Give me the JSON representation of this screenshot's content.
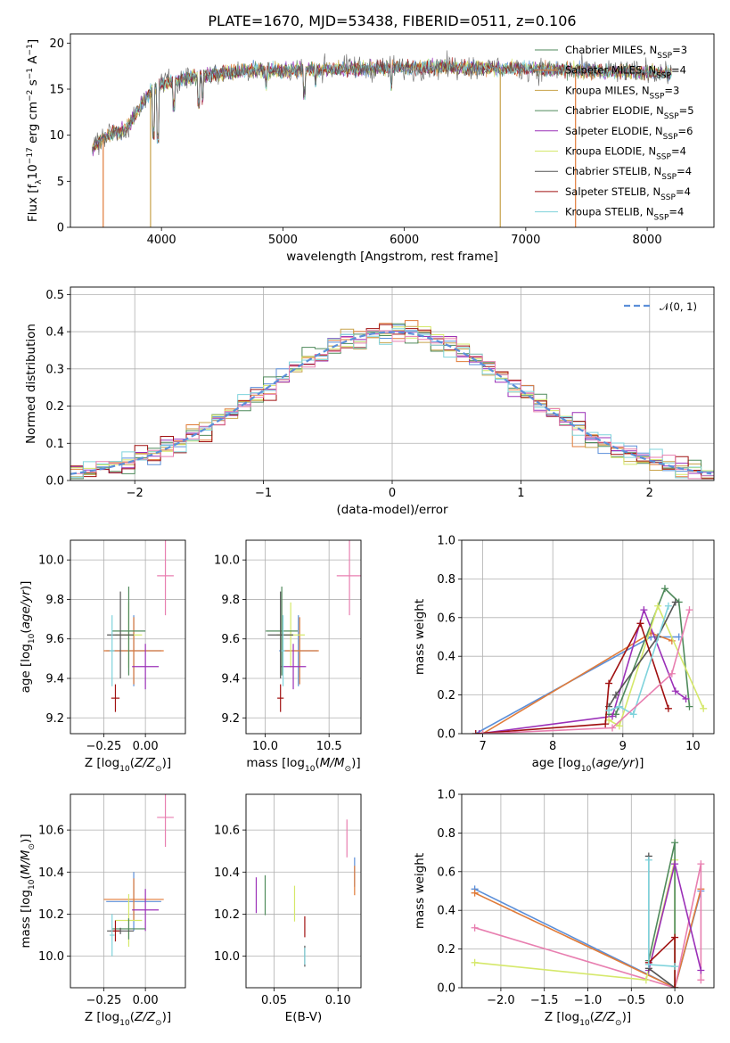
{
  "figure": {
    "title": "PLATE=1670, MJD=53438, FIBERID=0511, z=0.106"
  },
  "series_names": [
    "Chabrier MILES, N_SSP=3",
    "Salpeter MILES, N_SSP=4",
    "Kroupa MILES, N_SSP=3",
    "Chabrier ELODIE, N_SSP=5",
    "Salpeter ELODIE, N_SSP=6",
    "Kroupa ELODIE, N_SSP=4",
    "Chabrier STELIB, N_SSP=4",
    "Salpeter STELIB, N_SSP=4",
    "Kroupa STELIB, N_SSP=4"
  ],
  "colors": [
    "#5b8fd9",
    "#e07b39",
    "#c8a24a",
    "#4f8a5b",
    "#9b30b8",
    "#d5e86a",
    "#555555",
    "#a01010",
    "#7fd3dc",
    "#e87fb0"
  ],
  "chart_data": [
    {
      "id": "spectrum",
      "type": "line",
      "title": "PLATE=1670, MJD=53438, FIBERID=0511, z=0.106",
      "xlabel": "wavelength [Angstrom, rest frame]",
      "ylabel": "Flux [f_λ 10^-17 erg cm^-2 s^-1 A^-1]",
      "xlim": [
        3250,
        8550
      ],
      "ylim": [
        0,
        21
      ],
      "xticks": [
        4000,
        5000,
        6000,
        7000,
        8000
      ],
      "yticks": [
        0,
        5,
        10,
        15,
        20
      ],
      "grid": false,
      "legend": {
        "placement": "right",
        "entries": [
          "Chabrier MILES, N_SSP=3",
          "Salpeter MILES, N_SSP=4",
          "Kroupa MILES, N_SSP=3",
          "Chabrier ELODIE, N_SSP=5",
          "Salpeter ELODIE, N_SSP=6",
          "Kroupa ELODIE, N_SSP=4",
          "Chabrier STELIB, N_SSP=4",
          "Salpeter STELIB, N_SSP=4",
          "Kroupa STELIB, N_SSP=4"
        ]
      },
      "continuum": [
        [
          3430,
          8.5
        ],
        [
          3500,
          9.5
        ],
        [
          3600,
          10.3
        ],
        [
          3700,
          10.5
        ],
        [
          3800,
          12.5
        ],
        [
          3900,
          14.5
        ],
        [
          4000,
          15.6
        ],
        [
          4200,
          16.2
        ],
        [
          4400,
          16.6
        ],
        [
          4600,
          16.9
        ],
        [
          4800,
          17.1
        ],
        [
          5000,
          17.0
        ],
        [
          5200,
          17.1
        ],
        [
          5500,
          17.2
        ],
        [
          5800,
          17.3
        ],
        [
          6000,
          17.3
        ],
        [
          6300,
          17.4
        ],
        [
          6600,
          17.3
        ],
        [
          7000,
          17.2
        ],
        [
          7500,
          17.0
        ],
        [
          8000,
          16.8
        ],
        [
          8200,
          16.7
        ]
      ],
      "absorption_lines": [
        [
          3934,
          9.5
        ],
        [
          3969,
          9.0
        ],
        [
          4102,
          12.5
        ],
        [
          4305,
          12.8
        ],
        [
          4340,
          13.2
        ],
        [
          4861,
          14.8
        ],
        [
          5175,
          13.8
        ],
        [
          5270,
          15.2
        ],
        [
          5892,
          14.8
        ]
      ],
      "drops": [
        {
          "x": 3520,
          "series": 1
        },
        {
          "x": 3910,
          "series": 2
        },
        {
          "x": 6790,
          "series": 2
        },
        {
          "x": 7410,
          "series": 1
        }
      ]
    },
    {
      "id": "residual_hist",
      "type": "histogram",
      "xlabel": "(data-model)/error",
      "ylabel": "Normed distribution",
      "xlim": [
        -2.5,
        2.5
      ],
      "ylim": [
        0,
        0.52
      ],
      "xticks": [
        -2,
        -1,
        0,
        1,
        2
      ],
      "yticks": [
        0.0,
        0.1,
        0.2,
        0.3,
        0.4,
        0.5
      ],
      "grid": true,
      "bin_width": 0.1,
      "reference": {
        "label": "𝒩(0, 1)",
        "type": "gaussian",
        "mean": 0,
        "sigma": 1
      },
      "legend": {
        "placement": "top-right"
      }
    },
    {
      "id": "age_vs_Z",
      "type": "errorbar",
      "xlabel": "Z [log10(Z/Z⊙)]",
      "ylabel": "age [log10(age/yr)]",
      "xlim": [
        -0.45,
        0.24
      ],
      "ylim": [
        9.12,
        10.1
      ],
      "xticks": [
        -0.25,
        0.0
      ],
      "yticks": [
        9.2,
        9.4,
        9.6,
        9.8,
        10.0
      ],
      "points": [
        {
          "s": 0,
          "x": -0.07,
          "y": 9.54,
          "ex": 0.33,
          "ey": 0.36
        },
        {
          "s": 1,
          "x": -0.07,
          "y": 9.54,
          "ex": 0.36,
          "ey": 0.34
        },
        {
          "s": 9,
          "x": 0.12,
          "y": 9.92,
          "ex": 0.1,
          "ey": 0.4
        },
        {
          "s": 5,
          "x": -0.1,
          "y": 9.62,
          "ex": 0.16,
          "ey": 0.33
        },
        {
          "s": 4,
          "x": 0.0,
          "y": 9.46,
          "ex": 0.16,
          "ey": 0.23
        },
        {
          "s": 3,
          "x": -0.1,
          "y": 9.64,
          "ex": 0.2,
          "ey": 0.45
        },
        {
          "s": 6,
          "x": -0.15,
          "y": 9.62,
          "ex": 0.16,
          "ey": 0.44
        },
        {
          "s": 7,
          "x": -0.18,
          "y": 9.3,
          "ex": 0.05,
          "ey": 0.14
        },
        {
          "s": 8,
          "x": -0.2,
          "y": 9.54,
          "ex": 0.03,
          "ey": 0.36
        }
      ]
    },
    {
      "id": "age_vs_mass",
      "type": "errorbar",
      "xlabel": "mass [log10(M/M⊙)]",
      "ylabel": "",
      "xlim": [
        9.85,
        10.75
      ],
      "ylim": [
        9.12,
        10.1
      ],
      "xticks": [
        10.0,
        10.5
      ],
      "yticks": [
        9.2,
        9.4,
        9.6,
        9.8,
        10.0
      ],
      "points": [
        {
          "s": 0,
          "x": 10.26,
          "y": 9.54,
          "ex": 0.3,
          "ey": 0.36
        },
        {
          "s": 1,
          "x": 10.27,
          "y": 9.54,
          "ex": 0.3,
          "ey": 0.34
        },
        {
          "s": 9,
          "x": 10.66,
          "y": 9.92,
          "ex": 0.2,
          "ey": 0.4
        },
        {
          "s": 5,
          "x": 10.2,
          "y": 9.62,
          "ex": 0.22,
          "ey": 0.33
        },
        {
          "s": 4,
          "x": 10.22,
          "y": 9.46,
          "ex": 0.2,
          "ey": 0.23
        },
        {
          "s": 3,
          "x": 10.13,
          "y": 9.64,
          "ex": 0.25,
          "ey": 0.45
        },
        {
          "s": 6,
          "x": 10.12,
          "y": 9.62,
          "ex": 0.2,
          "ey": 0.44
        },
        {
          "s": 7,
          "x": 10.12,
          "y": 9.3,
          "ex": 0.05,
          "ey": 0.14
        },
        {
          "s": 8,
          "x": 10.14,
          "y": 9.54,
          "ex": 0.03,
          "ey": 0.36
        }
      ]
    },
    {
      "id": "weight_vs_age",
      "type": "line",
      "xlabel": "age [log10(age/yr)]",
      "ylabel": "mass weight",
      "xlim": [
        6.7,
        10.3
      ],
      "ylim": [
        0,
        1
      ],
      "xticks": [
        7,
        8,
        9,
        10
      ],
      "yticks": [
        0.0,
        0.2,
        0.4,
        0.6,
        0.8,
        1.0
      ],
      "series": [
        {
          "s": 0,
          "x": [
            6.9,
            9.4,
            9.8
          ],
          "y": [
            0.0,
            0.5,
            0.5
          ]
        },
        {
          "s": 1,
          "x": [
            7.0,
            9.4,
            9.7
          ],
          "y": [
            0.0,
            0.52,
            0.48
          ]
        },
        {
          "s": 3,
          "x": [
            8.8,
            8.9,
            9.6,
            9.8,
            9.95
          ],
          "y": [
            0.1,
            0.1,
            0.75,
            0.68,
            0.14
          ]
        },
        {
          "s": 4,
          "x": [
            6.95,
            8.85,
            9.3,
            9.75,
            9.9
          ],
          "y": [
            0.0,
            0.09,
            0.64,
            0.22,
            0.18
          ]
        },
        {
          "s": 5,
          "x": [
            8.8,
            8.95,
            9.5,
            10.15
          ],
          "y": [
            0.07,
            0.04,
            0.66,
            0.13
          ]
        },
        {
          "s": 6,
          "x": [
            8.8,
            8.9,
            9.5,
            9.75
          ],
          "y": [
            0.14,
            0.2,
            0.5,
            0.68
          ]
        },
        {
          "s": 7,
          "x": [
            6.9,
            8.75,
            8.8,
            9.25,
            9.65
          ],
          "y": [
            0.0,
            0.05,
            0.26,
            0.57,
            0.13
          ]
        },
        {
          "s": 8,
          "x": [
            8.8,
            8.95,
            9.15,
            9.65
          ],
          "y": [
            0.12,
            0.14,
            0.1,
            0.66
          ]
        },
        {
          "s": 9,
          "x": [
            7.0,
            8.85,
            9.7,
            9.95
          ],
          "y": [
            0.0,
            0.03,
            0.31,
            0.64
          ]
        }
      ]
    },
    {
      "id": "mass_vs_Z",
      "type": "errorbar",
      "xlabel": "Z [log10(Z/Z⊙)]",
      "ylabel": "mass [log10(M/M⊙)]",
      "xlim": [
        -0.45,
        0.24
      ],
      "ylim": [
        9.85,
        10.77
      ],
      "xticks": [
        -0.25,
        0.0
      ],
      "yticks": [
        10.0,
        10.2,
        10.4,
        10.6
      ],
      "points": [
        {
          "s": 0,
          "x": -0.07,
          "y": 10.26,
          "ex": 0.33,
          "ey": 0.28
        },
        {
          "s": 1,
          "x": -0.07,
          "y": 10.27,
          "ex": 0.36,
          "ey": 0.2
        },
        {
          "s": 9,
          "x": 0.12,
          "y": 10.66,
          "ex": 0.1,
          "ey": 0.28
        },
        {
          "s": 5,
          "x": -0.1,
          "y": 10.17,
          "ex": 0.16,
          "ey": 0.25
        },
        {
          "s": 4,
          "x": 0.0,
          "y": 10.22,
          "ex": 0.16,
          "ey": 0.2
        },
        {
          "s": 3,
          "x": -0.1,
          "y": 10.13,
          "ex": 0.2,
          "ey": 0.1
        },
        {
          "s": 6,
          "x": -0.15,
          "y": 10.12,
          "ex": 0.16,
          "ey": 0.03
        },
        {
          "s": 7,
          "x": -0.18,
          "y": 10.12,
          "ex": 0.05,
          "ey": 0.1
        },
        {
          "s": 8,
          "x": -0.2,
          "y": 10.1,
          "ex": 0.03,
          "ey": 0.2
        }
      ]
    },
    {
      "id": "mass_vs_ebv",
      "type": "errorbar",
      "xlabel": "E(B-V)",
      "ylabel": "",
      "xlim": [
        0.028,
        0.118
      ],
      "ylim": [
        9.85,
        10.77
      ],
      "xticks": [
        0.05,
        0.1
      ],
      "yticks": [
        10.0,
        10.2,
        10.4,
        10.6
      ],
      "points": [
        {
          "s": 0,
          "x": 0.113,
          "y": 10.4,
          "ex": 0,
          "ey": 0.14
        },
        {
          "s": 1,
          "x": 0.113,
          "y": 10.36,
          "ex": 0,
          "ey": 0.14
        },
        {
          "s": 9,
          "x": 0.107,
          "y": 10.56,
          "ex": 0,
          "ey": 0.18
        },
        {
          "s": 5,
          "x": 0.066,
          "y": 10.25,
          "ex": 0,
          "ey": 0.17
        },
        {
          "s": 4,
          "x": 0.036,
          "y": 10.29,
          "ex": 0,
          "ey": 0.17
        },
        {
          "s": 3,
          "x": 0.043,
          "y": 10.29,
          "ex": 0,
          "ey": 0.19
        },
        {
          "s": 6,
          "x": 0.074,
          "y": 10.0,
          "ex": 0,
          "ey": 0.1
        },
        {
          "s": 7,
          "x": 0.074,
          "y": 10.14,
          "ex": 0,
          "ey": 0.1
        },
        {
          "s": 8,
          "x": 0.074,
          "y": 10.0,
          "ex": 0,
          "ey": 0.08
        }
      ]
    },
    {
      "id": "weight_vs_Z",
      "type": "line",
      "xlabel": "Z [log10(Z/Z⊙)]",
      "ylabel": "mass weight",
      "xlim": [
        -2.45,
        0.45
      ],
      "ylim": [
        0,
        1
      ],
      "xticks": [
        -2.0,
        -1.5,
        -1.0,
        -0.5,
        0.0
      ],
      "yticks": [
        0.0,
        0.2,
        0.4,
        0.6,
        0.8,
        1.0
      ],
      "series": [
        {
          "s": 0,
          "x": [
            -2.3,
            0.0,
            0.3
          ],
          "y": [
            0.51,
            0.0,
            0.5
          ]
        },
        {
          "s": 1,
          "x": [
            -2.3,
            0.0,
            0.3
          ],
          "y": [
            0.49,
            0.0,
            0.51
          ]
        },
        {
          "s": 9,
          "x": [
            -2.3,
            0.0,
            0.3,
            0.3
          ],
          "y": [
            0.31,
            0.0,
            0.64,
            0.04
          ]
        },
        {
          "s": 5,
          "x": [
            -2.3,
            -0.33,
            0.0,
            0.0
          ],
          "y": [
            0.13,
            0.04,
            0.66,
            0.0
          ]
        },
        {
          "s": 3,
          "x": [
            -0.3,
            0.0,
            0.0
          ],
          "y": [
            0.14,
            0.75,
            0.0
          ]
        },
        {
          "s": 4,
          "x": [
            -0.3,
            0.0,
            0.3
          ],
          "y": [
            0.09,
            0.64,
            0.09
          ]
        },
        {
          "s": 6,
          "x": [
            -0.3,
            -0.3,
            0.0
          ],
          "y": [
            0.68,
            0.1,
            0.0
          ]
        },
        {
          "s": 7,
          "x": [
            -0.3,
            0.0,
            0.0
          ],
          "y": [
            0.13,
            0.26,
            0.0
          ]
        },
        {
          "s": 8,
          "x": [
            -0.3,
            -0.3,
            0.0
          ],
          "y": [
            0.66,
            0.12,
            0.11
          ]
        }
      ]
    }
  ]
}
